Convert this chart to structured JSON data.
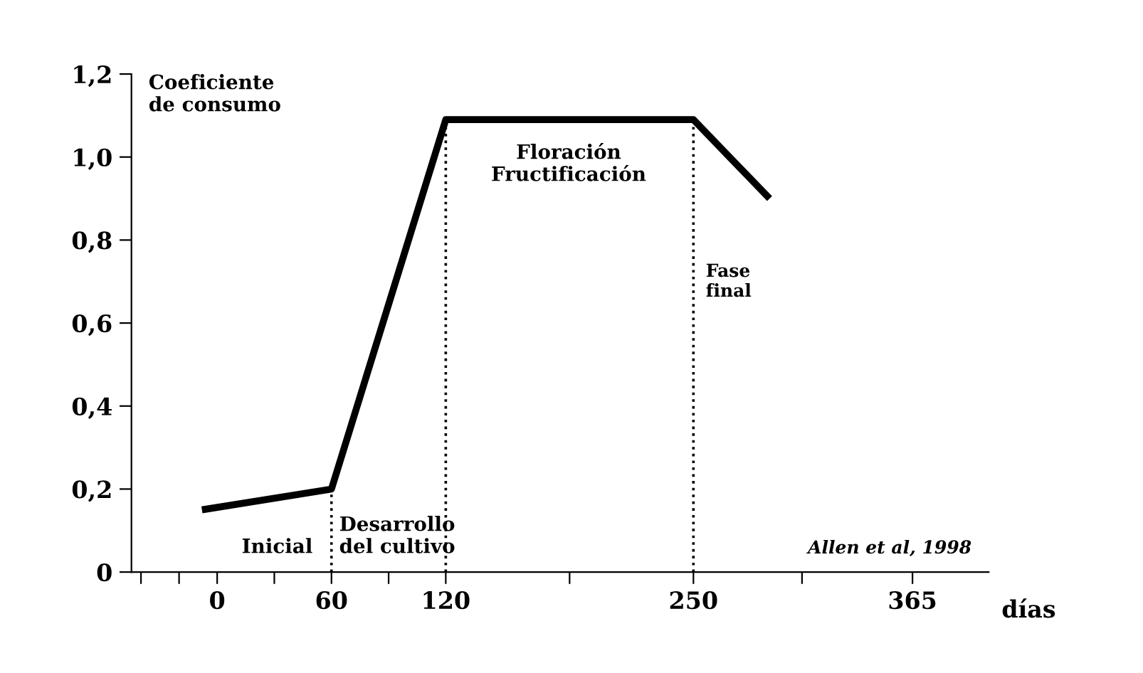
{
  "chart_data": {
    "type": "line",
    "xlabel": "días",
    "ylabel": "Coeficiente\nde consumo",
    "x": [
      -8,
      60,
      120,
      250,
      290
    ],
    "series": [
      {
        "color": "#000000",
        "values": [
          0.15,
          0.2,
          1.09,
          1.09,
          0.9
        ]
      }
    ],
    "xlim": [
      -45,
      405
    ],
    "xticks": [
      {
        "value": -40,
        "label": null
      },
      {
        "value": -20,
        "label": null
      },
      0,
      {
        "value": 30,
        "label": null
      },
      60,
      {
        "value": 90,
        "label": null
      },
      120,
      {
        "value": 185,
        "label": null
      },
      250,
      {
        "value": 307,
        "label": null
      },
      365
    ],
    "ylim": [
      0,
      1.2
    ],
    "yticks": [
      0,
      {
        "value": 0.2,
        "label": "0,2"
      },
      {
        "value": 0.4,
        "label": "0,4"
      },
      {
        "value": 0.6,
        "label": "0,6"
      },
      {
        "value": 0.8,
        "label": "0,8"
      },
      {
        "value": 1.0,
        "label": "1,0"
      },
      {
        "value": 1.2,
        "label": "1,2"
      }
    ],
    "ref_lines": [
      {
        "axis": "x",
        "value": 60,
        "label": null,
        "line_style": "dotted",
        "color": "#000000"
      },
      {
        "axis": "x",
        "value": 120,
        "label": null,
        "line_style": "dotted",
        "color": "#000000"
      },
      {
        "axis": "x",
        "value": 250,
        "label": null,
        "line_style": "dotted",
        "color": "#000000"
      }
    ],
    "annotations": [
      "Inicial",
      "Desarrollo\ndel cultivo",
      "Floración\nFructificación",
      "Fase\nfinal",
      "Allen et al, 1998"
    ],
    "grid": false,
    "legend": false,
    "marker": "none",
    "line_style": "solid"
  }
}
